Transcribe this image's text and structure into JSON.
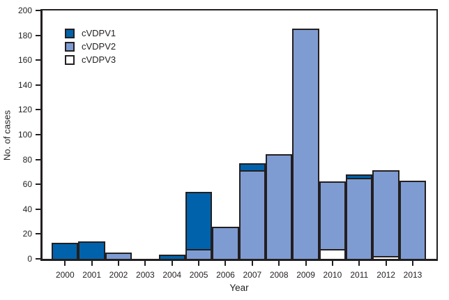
{
  "chart_data": {
    "type": "bar",
    "stacked": true,
    "title": "",
    "xlabel": "Year",
    "ylabel": "No. of cases",
    "ylim": [
      0,
      200
    ],
    "ytick_step": 20,
    "grid": false,
    "axis_color": "#231f20",
    "plot_background": "#ffffff",
    "categories": [
      "2000",
      "2001",
      "2002",
      "2003",
      "2004",
      "2005",
      "2006",
      "2007",
      "2008",
      "2009",
      "2010",
      "2011",
      "2012",
      "2013"
    ],
    "series": [
      {
        "name": "cVDPV1",
        "color": "#0062ab",
        "values": [
          12,
          13,
          0,
          0,
          2,
          46,
          0,
          6,
          0,
          0,
          0,
          3,
          0,
          0
        ]
      },
      {
        "name": "cVDPV2",
        "color": "#7f9cd2",
        "values": [
          0,
          0,
          4,
          0,
          0,
          7,
          25,
          70,
          83,
          184,
          54,
          64,
          69,
          62
        ]
      },
      {
        "name": "cVDPV3",
        "color": "#ffffff",
        "values": [
          0,
          0,
          0,
          0,
          0,
          0,
          0,
          0,
          0,
          0,
          7,
          0,
          1,
          0
        ]
      }
    ],
    "stack_order_bottom_to_top": [
      "cVDPV3",
      "cVDPV2",
      "cVDPV1"
    ],
    "totals_per_year": [
      12,
      13,
      4,
      0,
      2,
      53,
      25,
      76,
      83,
      184,
      61,
      67,
      70,
      62
    ],
    "legend": {
      "position": "top-left-inside-plot",
      "entries": [
        "cVDPV1",
        "cVDPV2",
        "cVDPV3"
      ]
    }
  }
}
